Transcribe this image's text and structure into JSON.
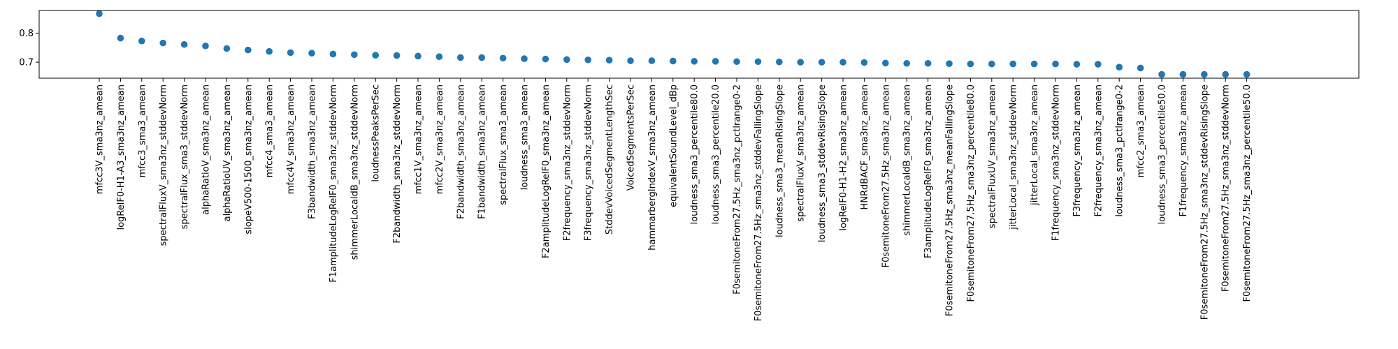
{
  "chart_data": {
    "type": "scatter",
    "title": "",
    "xlabel": "",
    "ylabel": "",
    "ylim": [
      0.645,
      0.878
    ],
    "yticks": [
      0.7,
      0.8
    ],
    "ytick_labels": [
      "0.7",
      "0.8"
    ],
    "grid": false,
    "marker_color": "#1f77b4",
    "categories": [
      "mfcc3V_sma3nz_amean",
      "logRelF0-H1-A3_sma3nz_amean",
      "mfcc3_sma3_amean",
      "spectralFluxV_sma3nz_stddevNorm",
      "spectralFlux_sma3_stddevNorm",
      "alphaRatioV_sma3nz_amean",
      "alphaRatioUV_sma3nz_amean",
      "slopeV500-1500_sma3nz_amean",
      "mfcc4_sma3_amean",
      "mfcc4V_sma3nz_amean",
      "F3bandwidth_sma3nz_amean",
      "F1amplitudeLogRelF0_sma3nz_stddevNorm",
      "shimmerLocaldB_sma3nz_stddevNorm",
      "loudnessPeaksPerSec",
      "F2bandwidth_sma3nz_stddevNorm",
      "mfcc1V_sma3nz_amean",
      "mfcc2V_sma3nz_amean",
      "F2bandwidth_sma3nz_amean",
      "F1bandwidth_sma3nz_amean",
      "spectralFlux_sma3_amean",
      "loudness_sma3_amean",
      "F2amplitudeLogRelF0_sma3nz_amean",
      "F2frequency_sma3nz_stddevNorm",
      "F3frequency_sma3nz_stddevNorm",
      "StddevVoicedSegmentLengthSec",
      "VoicedSegmentsPerSec",
      "hammarbergIndexV_sma3nz_amean",
      "equivalentSoundLevel_dBp",
      "loudness_sma3_percentile80.0",
      "loudness_sma3_percentile20.0",
      "F0semitoneFrom27.5Hz_sma3nz_pctlrange0-2",
      "F0semitoneFrom27.5Hz_sma3nz_stddevFallingSlope",
      "loudness_sma3_meanRisingSlope",
      "spectralFluxV_sma3nz_amean",
      "loudness_sma3_stddevRisingSlope",
      "logRelF0-H1-H2_sma3nz_amean",
      "HNRdBACF_sma3nz_amean",
      "F0semitoneFrom27.5Hz_sma3nz_amean",
      "shimmerLocaldB_sma3nz_amean",
      "F3amplitudeLogRelF0_sma3nz_amean",
      "F0semitoneFrom27.5Hz_sma3nz_meanFallingSlope",
      "F0semitoneFrom27.5Hz_sma3nz_percentile80.0",
      "spectralFluxUV_sma3nz_amean",
      "jitterLocal_sma3nz_stddevNorm",
      "jitterLocal_sma3nz_amean",
      "F1frequency_sma3nz_stddevNorm",
      "F3frequency_sma3nz_amean",
      "F2frequency_sma3nz_amean",
      "loudness_sma3_pctlrange0-2",
      "mfcc2_sma3_amean",
      "loudness_sma3_percentile50.0",
      "F1frequency_sma3nz_amean",
      "F0semitoneFrom27.5Hz_sma3nz_stddevRisingSlope",
      "F0semitoneFrom27.5Hz_sma3nz_stddevNorm",
      "F0semitoneFrom27.5Hz_sma3nz_percentile50.0"
    ],
    "values": [
      0.867,
      0.783,
      0.773,
      0.766,
      0.761,
      0.756,
      0.747,
      0.742,
      0.737,
      0.733,
      0.731,
      0.728,
      0.726,
      0.724,
      0.723,
      0.721,
      0.719,
      0.716,
      0.716,
      0.714,
      0.712,
      0.711,
      0.709,
      0.708,
      0.707,
      0.705,
      0.705,
      0.704,
      0.703,
      0.703,
      0.702,
      0.702,
      0.701,
      0.7,
      0.7,
      0.7,
      0.699,
      0.697,
      0.696,
      0.696,
      0.695,
      0.694,
      0.694,
      0.694,
      0.694,
      0.694,
      0.693,
      0.693,
      0.683,
      0.68,
      0.658,
      0.658,
      0.658,
      0.658,
      0.658
    ]
  }
}
